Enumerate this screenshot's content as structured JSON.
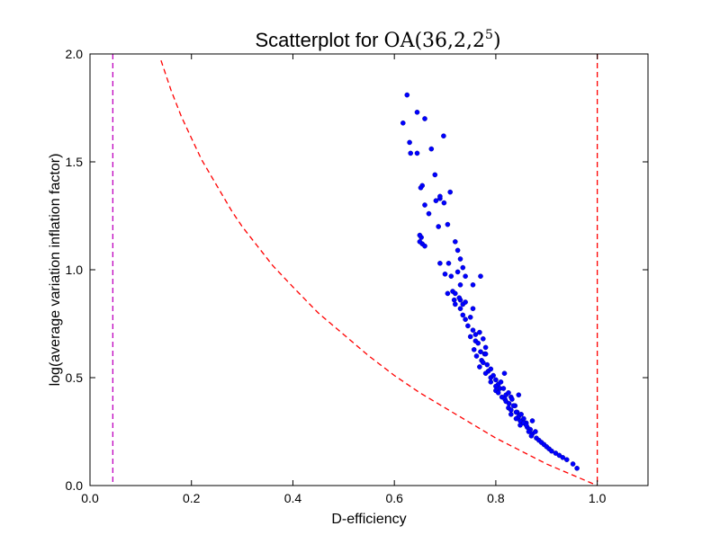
{
  "chart_data": {
    "type": "scatter",
    "title_prefix": "Scatterplot for ",
    "title_math": "OA(36,2,2",
    "title_exp": "5",
    "title_close": ")",
    "xlabel": "D-efficiency",
    "ylabel": "log(average variation inflation factor)",
    "xlim": [
      0.0,
      1.1
    ],
    "ylim": [
      0.0,
      2.0
    ],
    "xticks": [
      0.0,
      0.2,
      0.4,
      0.6,
      0.8,
      1.0
    ],
    "xtick_labels": [
      "0.0",
      "0.2",
      "0.4",
      "0.6",
      "0.8",
      "1.0"
    ],
    "yticks": [
      0.0,
      0.5,
      1.0,
      1.5,
      2.0
    ],
    "ytick_labels": [
      "0.0",
      "0.5",
      "1.0",
      "1.5",
      "2.0"
    ],
    "grid": false,
    "colors": {
      "points": "#0000ff",
      "bound_curve": "#ff0000",
      "left_line": "#bf00bf",
      "right_line": "#ff0000"
    },
    "vertical_lines": [
      {
        "x": 0.045,
        "style": "dashed",
        "color": "#bf00bf"
      },
      {
        "x": 1.0,
        "style": "dashed",
        "color": "#ff0000"
      }
    ],
    "bound_curve": {
      "style": "dashed",
      "x": [
        0.14,
        0.16,
        0.18,
        0.2,
        0.22,
        0.25,
        0.28,
        0.3,
        0.33,
        0.36,
        0.4,
        0.45,
        0.5,
        0.55,
        0.6,
        0.65,
        0.7,
        0.75,
        0.8,
        0.85,
        0.9,
        0.95,
        1.0
      ],
      "y": [
        1.97,
        1.83,
        1.71,
        1.61,
        1.51,
        1.39,
        1.27,
        1.2,
        1.11,
        1.02,
        0.92,
        0.8,
        0.7,
        0.6,
        0.51,
        0.43,
        0.36,
        0.29,
        0.22,
        0.16,
        0.1,
        0.05,
        0.0
      ]
    },
    "points": {
      "x": [
        0.625,
        0.617,
        0.645,
        0.66,
        0.673,
        0.63,
        0.632,
        0.645,
        0.697,
        0.68,
        0.655,
        0.652,
        0.69,
        0.69,
        0.71,
        0.653,
        0.655,
        0.66,
        0.668,
        0.682,
        0.687,
        0.698,
        0.705,
        0.66,
        0.65,
        0.65,
        0.707,
        0.72,
        0.725,
        0.73,
        0.735,
        0.69,
        0.7,
        0.712,
        0.725,
        0.73,
        0.74,
        0.755,
        0.77,
        0.715,
        0.72,
        0.73,
        0.735,
        0.705,
        0.718,
        0.73,
        0.74,
        0.72,
        0.735,
        0.74,
        0.75,
        0.745,
        0.755,
        0.76,
        0.768,
        0.75,
        0.76,
        0.765,
        0.775,
        0.757,
        0.77,
        0.78,
        0.762,
        0.772,
        0.778,
        0.783,
        0.768,
        0.775,
        0.785,
        0.79,
        0.78,
        0.79,
        0.795,
        0.8,
        0.805,
        0.79,
        0.8,
        0.808,
        0.81,
        0.8,
        0.805,
        0.815,
        0.82,
        0.812,
        0.818,
        0.825,
        0.83,
        0.82,
        0.826,
        0.832,
        0.838,
        0.825,
        0.83,
        0.835,
        0.842,
        0.83,
        0.84,
        0.845,
        0.85,
        0.84,
        0.848,
        0.855,
        0.86,
        0.848,
        0.855,
        0.862,
        0.868,
        0.86,
        0.865,
        0.872,
        0.878,
        0.87,
        0.88,
        0.885,
        0.89,
        0.895,
        0.9,
        0.905,
        0.91,
        0.918,
        0.925,
        0.932,
        0.94,
        0.952,
        0.96,
        0.817,
        0.845,
        0.872,
        0.755,
        0.78,
        0.728
      ],
      "y": [
        1.81,
        1.68,
        1.73,
        1.7,
        1.56,
        1.59,
        1.54,
        1.54,
        1.62,
        1.44,
        1.39,
        1.38,
        1.33,
        1.34,
        1.36,
        1.15,
        1.12,
        1.3,
        1.26,
        1.32,
        1.2,
        1.31,
        1.21,
        1.11,
        1.16,
        1.13,
        1.03,
        1.13,
        1.09,
        1.05,
        1.01,
        1.03,
        0.98,
        0.97,
        0.99,
        0.93,
        0.97,
        0.93,
        0.97,
        0.9,
        0.89,
        0.86,
        0.84,
        0.89,
        0.86,
        0.82,
        0.85,
        0.84,
        0.79,
        0.77,
        0.78,
        0.74,
        0.72,
        0.7,
        0.71,
        0.69,
        0.67,
        0.66,
        0.68,
        0.63,
        0.62,
        0.64,
        0.6,
        0.58,
        0.61,
        0.56,
        0.55,
        0.57,
        0.53,
        0.54,
        0.52,
        0.5,
        0.51,
        0.49,
        0.47,
        0.48,
        0.46,
        0.45,
        0.48,
        0.44,
        0.43,
        0.45,
        0.42,
        0.41,
        0.4,
        0.43,
        0.41,
        0.39,
        0.38,
        0.4,
        0.37,
        0.36,
        0.35,
        0.37,
        0.34,
        0.33,
        0.34,
        0.32,
        0.33,
        0.31,
        0.3,
        0.31,
        0.29,
        0.28,
        0.29,
        0.27,
        0.26,
        0.28,
        0.25,
        0.24,
        0.25,
        0.23,
        0.22,
        0.21,
        0.2,
        0.19,
        0.18,
        0.17,
        0.16,
        0.15,
        0.14,
        0.13,
        0.12,
        0.1,
        0.08,
        0.52,
        0.42,
        0.3,
        0.82,
        0.61,
        0.87
      ]
    }
  }
}
